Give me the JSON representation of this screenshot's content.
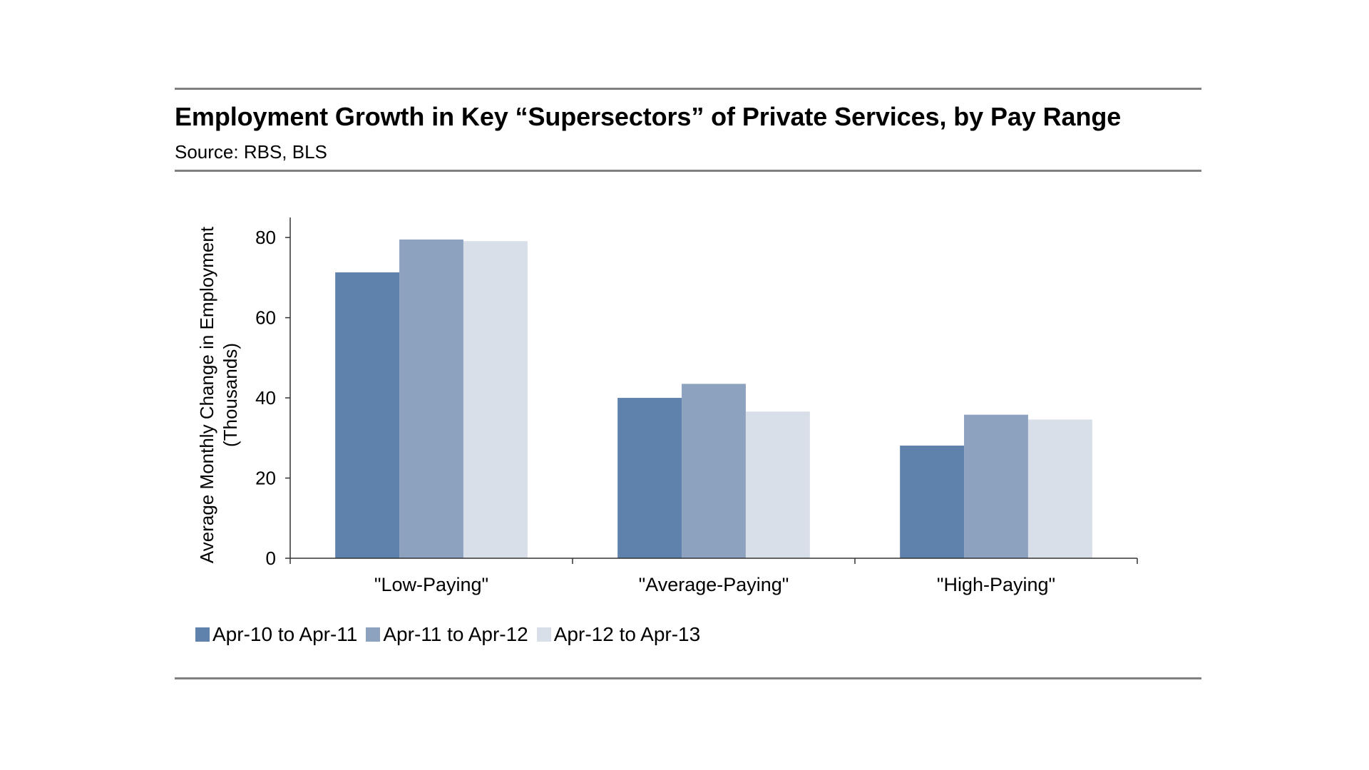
{
  "header": {
    "title": "Employment Growth in Key “Supersectors” of Private Services, by Pay Range",
    "source": "Source: RBS, BLS"
  },
  "chart_data": {
    "type": "bar",
    "title": "Employment Growth in Key “Supersectors” of Private Services, by Pay Range",
    "xlabel": "",
    "ylabel": "Average Monthly Change in Employment (Thousands)",
    "ylabel_lines": [
      "Average Monthly Change in Employment",
      "(Thousands)"
    ],
    "categories": [
      "\"Low-Paying\"",
      "\"Average-Paying\"",
      "\"High-Paying\""
    ],
    "series": [
      {
        "name": "Apr-10 to Apr-11",
        "values": [
          71.3,
          40.0,
          28.1
        ],
        "color": "#5f82ad"
      },
      {
        "name": "Apr-11 to Apr-12",
        "values": [
          79.5,
          43.5,
          35.8
        ],
        "color": "#8da2bf"
      },
      {
        "name": "Apr-12 to Apr-13",
        "values": [
          79.1,
          36.6,
          34.6
        ],
        "color": "#d9dfe9"
      }
    ],
    "ylim": [
      0,
      85
    ],
    "yticks": [
      0,
      20,
      40,
      60,
      80
    ],
    "grid": false,
    "legend": "bottom-left"
  }
}
